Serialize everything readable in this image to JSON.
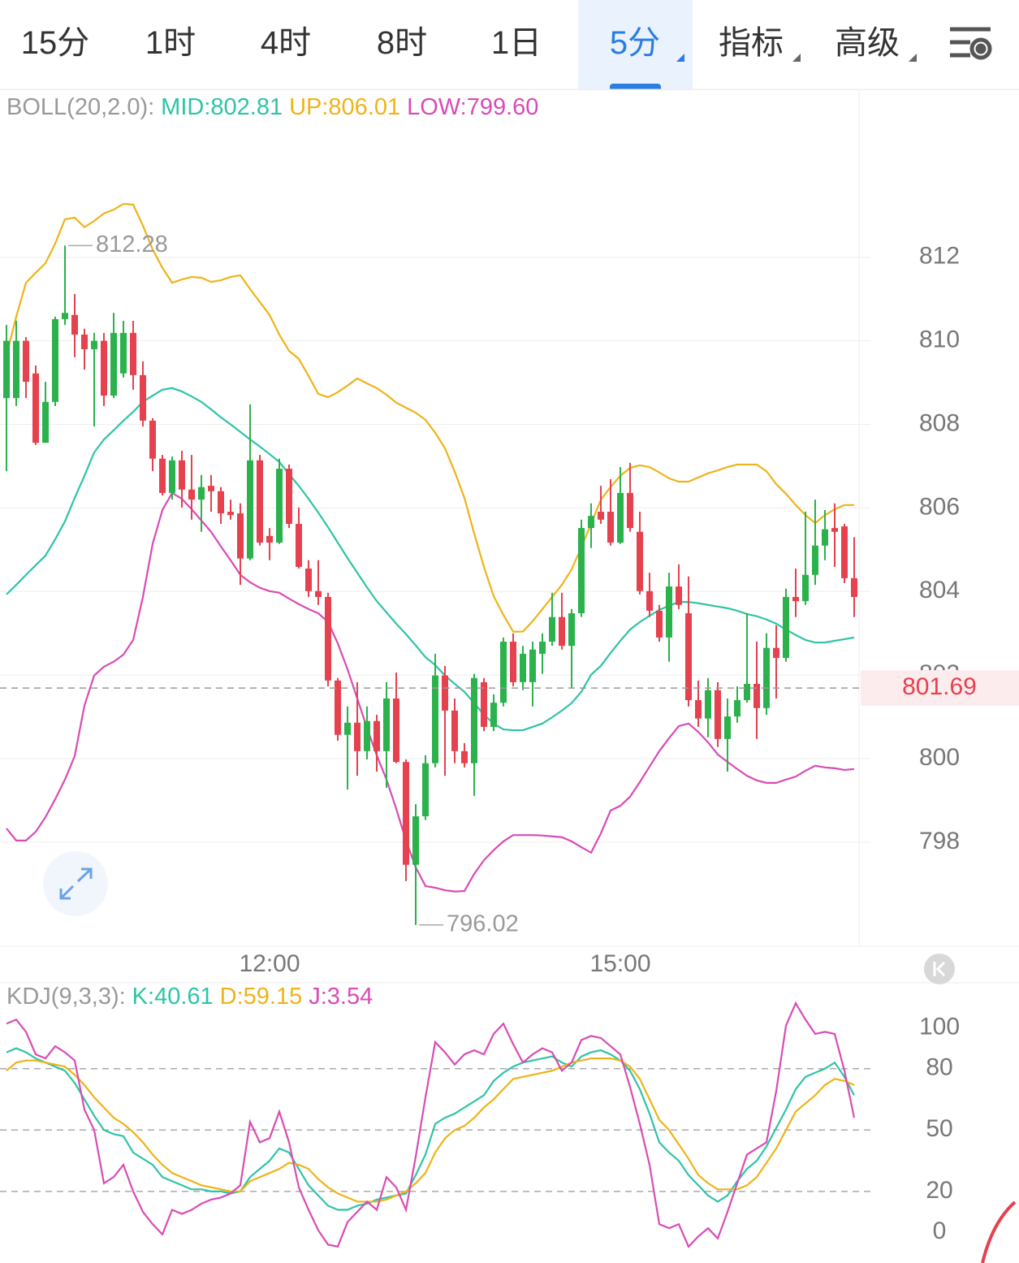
{
  "tabs": [
    {
      "label": "15分"
    },
    {
      "label": "1时"
    },
    {
      "label": "4时"
    },
    {
      "label": "8时"
    },
    {
      "label": "1日"
    },
    {
      "label": "5分",
      "dropdown": true
    },
    {
      "label": "指标",
      "dropdown": true
    },
    {
      "label": "高级",
      "dropdown": true
    }
  ],
  "active_tab": 5,
  "chart_data": [
    {
      "type": "candlestick",
      "indicator": "BOLL(20,2.0):",
      "categories": [
        null,
        null,
        null,
        null,
        null,
        null,
        null,
        null,
        null,
        null,
        null,
        null,
        null,
        null,
        null,
        null,
        null,
        null,
        null,
        null,
        null,
        null,
        null,
        null,
        null,
        null,
        null,
        "12:00",
        null,
        null,
        null,
        null,
        null,
        null,
        null,
        null,
        null,
        null,
        null,
        null,
        null,
        null,
        null,
        null,
        null,
        null,
        null,
        null,
        null,
        null,
        null,
        null,
        null,
        null,
        null,
        null,
        null,
        null,
        null,
        null,
        null,
        null,
        null,
        "15:00",
        null,
        null,
        null,
        null,
        null,
        null,
        null,
        null,
        null,
        null,
        null,
        null,
        null,
        null,
        null,
        null,
        null,
        null,
        null,
        null,
        null,
        null,
        null,
        null
      ],
      "open": [
        808.63,
        808.63,
        810.0,
        809.22,
        807.56,
        808.54,
        810.52,
        810.62,
        810.15,
        809.8,
        810.0,
        808.69,
        809.22,
        810.19,
        809.18,
        808.09,
        807.18,
        806.36,
        807.14,
        806.44,
        806.2,
        806.53,
        806.4,
        805.91,
        805.87,
        804.79,
        807.14,
        805.33,
        805.17,
        806.94,
        805.62,
        804.55,
        804.01,
        803.87,
        801.87,
        800.57,
        800.86,
        800.18,
        800.9,
        800.18,
        801.44,
        799.92,
        797.46,
        798.62,
        799.89,
        801.99,
        801.15,
        800.18,
        799.89,
        801.83,
        800.76,
        801.34,
        802.8,
        801.83,
        801.83,
        802.51,
        802.8,
        803.39,
        802.7,
        803.48,
        805.52,
        805.91,
        805.91,
        805.17,
        806.36,
        805.43,
        804.01,
        803.54,
        802.9,
        804.12,
        803.48,
        801.4,
        800.96,
        801.64,
        800.47,
        801.01,
        801.4,
        801.79,
        801.21,
        802.65,
        802.41,
        803.87,
        803.77,
        804.4,
        805.1,
        805.52,
        805.56,
        804.32
      ],
      "high": [
        810.38,
        810.48,
        810.09,
        809.41,
        809.02,
        810.58,
        812.28,
        811.12,
        810.29,
        810.19,
        810.19,
        810.67,
        810.48,
        810.48,
        809.51,
        808.15,
        807.27,
        807.23,
        807.37,
        807.27,
        806.79,
        806.79,
        806.5,
        806.2,
        806.11,
        808.48,
        807.27,
        805.52,
        807.18,
        807.04,
        806.01,
        804.75,
        804.75,
        803.97,
        801.93,
        801.25,
        801.83,
        801.25,
        801.05,
        801.83,
        802.06,
        799.98,
        798.91,
        800.08,
        802.51,
        802.22,
        801.44,
        800.37,
        802.03,
        801.93,
        801.54,
        802.9,
        803.0,
        802.7,
        802.8,
        803.0,
        803.97,
        803.97,
        803.58,
        805.72,
        806.11,
        806.53,
        806.69,
        806.98,
        807.08,
        805.91,
        804.45,
        803.68,
        804.45,
        804.65,
        804.36,
        801.87,
        801.93,
        801.83,
        801.44,
        801.73,
        803.48,
        802.8,
        803.0,
        803.19,
        804.07,
        804.55,
        805.91,
        806.2,
        805.95,
        806.11,
        805.62,
        805.3
      ],
      "low": [
        806.88,
        808.44,
        808.63,
        807.51,
        807.56,
        808.44,
        810.38,
        809.61,
        809.31,
        807.95,
        808.44,
        808.63,
        809.12,
        808.83,
        807.95,
        806.88,
        806.3,
        806.2,
        806.01,
        805.72,
        805.43,
        805.91,
        805.62,
        805.72,
        804.16,
        804.75,
        805.1,
        804.75,
        805.14,
        805.52,
        804.55,
        803.87,
        803.68,
        801.73,
        800.43,
        799.26,
        799.59,
        799.98,
        799.69,
        799.3,
        799.89,
        797.07,
        796.02,
        798.53,
        799.79,
        799.59,
        799.89,
        799.79,
        799.11,
        800.66,
        800.66,
        801.25,
        801.73,
        801.64,
        801.25,
        802.03,
        802.7,
        802.61,
        801.68,
        803.39,
        805.04,
        805.62,
        805.1,
        805.14,
        805.43,
        803.93,
        803.39,
        802.8,
        802.32,
        803.58,
        801.25,
        800.76,
        800.51,
        800.28,
        799.69,
        800.86,
        801.34,
        800.47,
        801.05,
        801.44,
        802.32,
        803.39,
        803.68,
        804.16,
        804.75,
        804.59,
        804.2,
        803.39
      ],
      "close": [
        810.0,
        810.0,
        809.02,
        807.56,
        808.54,
        810.52,
        810.67,
        810.15,
        809.8,
        810.0,
        808.69,
        810.19,
        810.19,
        809.18,
        808.09,
        807.18,
        806.36,
        807.14,
        806.44,
        806.2,
        806.5,
        806.4,
        805.87,
        805.83,
        804.79,
        807.14,
        805.17,
        805.17,
        806.94,
        805.62,
        804.59,
        804.01,
        803.87,
        801.87,
        800.57,
        800.86,
        800.18,
        800.9,
        800.18,
        801.44,
        799.92,
        797.46,
        798.62,
        799.89,
        801.99,
        801.15,
        800.18,
        799.89,
        801.93,
        800.76,
        801.34,
        802.8,
        801.83,
        802.51,
        802.61,
        802.8,
        803.39,
        802.7,
        803.48,
        805.52,
        805.81,
        805.72,
        805.17,
        806.36,
        805.52,
        804.01,
        803.54,
        802.9,
        804.12,
        803.68,
        801.4,
        800.96,
        801.64,
        800.47,
        801.01,
        801.4,
        801.79,
        801.21,
        802.65,
        802.41,
        803.87,
        803.77,
        804.4,
        805.1,
        805.49,
        805.43,
        804.32,
        803.87
      ],
      "up_color": "#2bb24c",
      "down_color": "#e5414e",
      "series": [
        {
          "name": "MID:802.81",
          "color": "#2ec4a6",
          "values": [
            803.93,
            804.16,
            804.4,
            804.63,
            804.86,
            805.25,
            805.68,
            806.24,
            806.77,
            807.33,
            807.64,
            807.86,
            808.09,
            808.3,
            808.54,
            808.69,
            808.83,
            808.87,
            808.79,
            808.67,
            808.54,
            808.36,
            808.17,
            808.0,
            807.82,
            807.64,
            807.47,
            807.29,
            807.1,
            806.81,
            806.53,
            806.22,
            805.89,
            805.54,
            805.17,
            804.8,
            804.45,
            804.1,
            803.77,
            803.5,
            803.23,
            802.98,
            802.71,
            802.43,
            802.24,
            801.99,
            801.79,
            801.6,
            801.33,
            801.05,
            800.84,
            800.7,
            800.68,
            800.68,
            800.76,
            800.84,
            800.99,
            801.15,
            801.33,
            801.6,
            802.01,
            802.22,
            802.53,
            802.82,
            803.09,
            803.27,
            803.42,
            803.56,
            803.66,
            803.75,
            803.75,
            803.72,
            803.68,
            803.64,
            803.6,
            803.54,
            803.46,
            803.41,
            803.33,
            803.23,
            803.09,
            802.96,
            802.84,
            802.78,
            802.78,
            802.82,
            802.86,
            802.9
          ]
        },
        {
          "name": "UP:806.01",
          "color": "#efb318",
          "values": [
            809.65,
            810.58,
            811.39,
            811.63,
            811.86,
            812.33,
            812.91,
            812.95,
            812.72,
            812.87,
            813.05,
            813.14,
            813.28,
            813.26,
            812.76,
            812.19,
            811.75,
            811.39,
            811.47,
            811.53,
            811.51,
            811.41,
            811.45,
            811.53,
            811.57,
            811.24,
            810.93,
            810.62,
            810.15,
            809.76,
            809.57,
            809.16,
            808.73,
            808.65,
            808.77,
            808.93,
            809.1,
            808.98,
            808.87,
            808.71,
            808.52,
            808.4,
            808.28,
            808.11,
            807.8,
            807.43,
            806.87,
            806.24,
            805.39,
            804.59,
            803.89,
            803.44,
            803.04,
            803.04,
            803.29,
            803.58,
            803.87,
            804.16,
            804.53,
            805.06,
            805.62,
            806.2,
            806.5,
            806.77,
            806.96,
            807.02,
            806.98,
            806.85,
            806.71,
            806.63,
            806.63,
            806.73,
            806.83,
            806.9,
            806.98,
            807.04,
            807.04,
            807.04,
            806.88,
            806.57,
            806.34,
            806.07,
            805.83,
            805.64,
            805.83,
            805.97,
            806.07,
            806.07
          ]
        },
        {
          "name": "LOW:799.60",
          "color": "#d94bb5",
          "values": [
            798.33,
            798.04,
            798.04,
            798.25,
            798.6,
            799.03,
            799.5,
            800.06,
            801.27,
            801.99,
            802.2,
            802.32,
            802.49,
            802.84,
            803.87,
            805.14,
            805.95,
            806.36,
            806.22,
            805.97,
            805.7,
            805.43,
            805.08,
            804.75,
            804.4,
            804.22,
            804.09,
            804.01,
            803.97,
            803.83,
            803.7,
            803.58,
            803.48,
            803.27,
            802.76,
            802.14,
            801.44,
            800.74,
            800.08,
            799.5,
            798.8,
            798.04,
            797.4,
            796.95,
            796.91,
            796.85,
            796.82,
            796.83,
            797.24,
            797.57,
            797.81,
            798.02,
            798.17,
            798.17,
            798.17,
            798.16,
            798.14,
            798.12,
            798.02,
            797.88,
            797.75,
            798.21,
            798.76,
            798.87,
            799.09,
            799.44,
            799.81,
            800.18,
            800.49,
            800.78,
            800.84,
            800.64,
            800.39,
            800.1,
            799.92,
            799.75,
            799.59,
            799.48,
            799.42,
            799.42,
            799.5,
            799.57,
            799.71,
            799.83,
            799.79,
            799.77,
            799.73,
            799.75
          ]
        }
      ],
      "ylim": [
        795.51,
        816.02
      ],
      "yticks": [
        798,
        800,
        802,
        804,
        806,
        808,
        810,
        812
      ],
      "max_label": 812.28,
      "min_label": 796.02,
      "current_price": 801.69
    },
    {
      "type": "line",
      "indicator": "KDJ(9,3,3):",
      "series": [
        {
          "name": "K:40.61",
          "color": "#2ec4a6",
          "values": [
            88,
            90,
            88,
            85,
            83,
            81,
            79,
            73,
            65,
            57,
            50,
            48,
            47,
            39,
            36,
            33,
            27,
            25,
            23,
            21,
            21,
            20,
            20,
            19,
            20,
            27,
            31,
            35,
            41,
            39,
            31,
            23,
            18,
            13,
            11,
            11,
            13,
            14,
            16,
            17,
            18,
            19,
            28,
            38,
            53,
            56,
            58,
            61,
            64,
            67,
            74,
            78,
            81,
            83,
            84,
            85,
            86,
            83,
            81,
            86,
            88,
            89,
            87,
            84,
            79,
            70,
            58,
            44,
            39,
            35,
            28,
            23,
            18,
            15,
            18,
            25,
            31,
            35,
            42,
            51,
            60,
            70,
            76,
            78,
            80,
            83,
            76,
            67
          ]
        },
        {
          "name": "D:59.15",
          "color": "#efb318",
          "values": [
            79,
            83,
            84,
            84,
            83,
            82,
            81,
            77,
            72,
            66,
            61,
            56,
            53,
            49,
            44,
            38,
            33,
            29,
            27,
            25,
            23,
            22,
            21,
            20,
            20,
            25,
            27,
            29,
            31,
            34,
            33,
            31,
            26,
            22,
            19,
            17,
            15,
            15,
            15,
            16,
            18,
            20,
            24,
            29,
            39,
            46,
            50,
            52,
            56,
            61,
            65,
            70,
            75,
            76,
            77,
            78,
            79,
            81,
            83,
            84,
            85,
            85,
            85,
            84,
            81,
            75,
            65,
            55,
            50,
            43,
            36,
            28,
            24,
            21,
            21,
            21,
            23,
            27,
            34,
            41,
            50,
            59,
            63,
            67,
            72,
            75,
            74,
            72
          ]
        },
        {
          "name": "J:3.54",
          "color": "#d94bb5",
          "values": [
            102,
            104,
            98,
            87,
            85,
            91,
            88,
            84,
            60,
            50,
            24,
            27,
            33,
            20,
            10,
            4,
            -1,
            11,
            9,
            11,
            14,
            16,
            17,
            19,
            23,
            54,
            44,
            46,
            59,
            44,
            22,
            11,
            1,
            -6,
            -7,
            5,
            10,
            15,
            11,
            27,
            22,
            11,
            37,
            66,
            93,
            88,
            82,
            87,
            89,
            87,
            97,
            102,
            92,
            83,
            87,
            90,
            88,
            79,
            83,
            94,
            96,
            95,
            91,
            87,
            71,
            53,
            33,
            4,
            2,
            4,
            -7,
            -2,
            2,
            -3,
            10,
            24,
            38,
            41,
            44,
            69,
            101,
            112,
            104,
            97,
            98,
            97,
            79,
            56
          ]
        }
      ],
      "ylim": [
        -15,
        120
      ],
      "yticks": [
        0,
        20,
        50,
        80,
        100
      ],
      "dashed_levels": [
        20,
        50,
        80
      ]
    }
  ]
}
